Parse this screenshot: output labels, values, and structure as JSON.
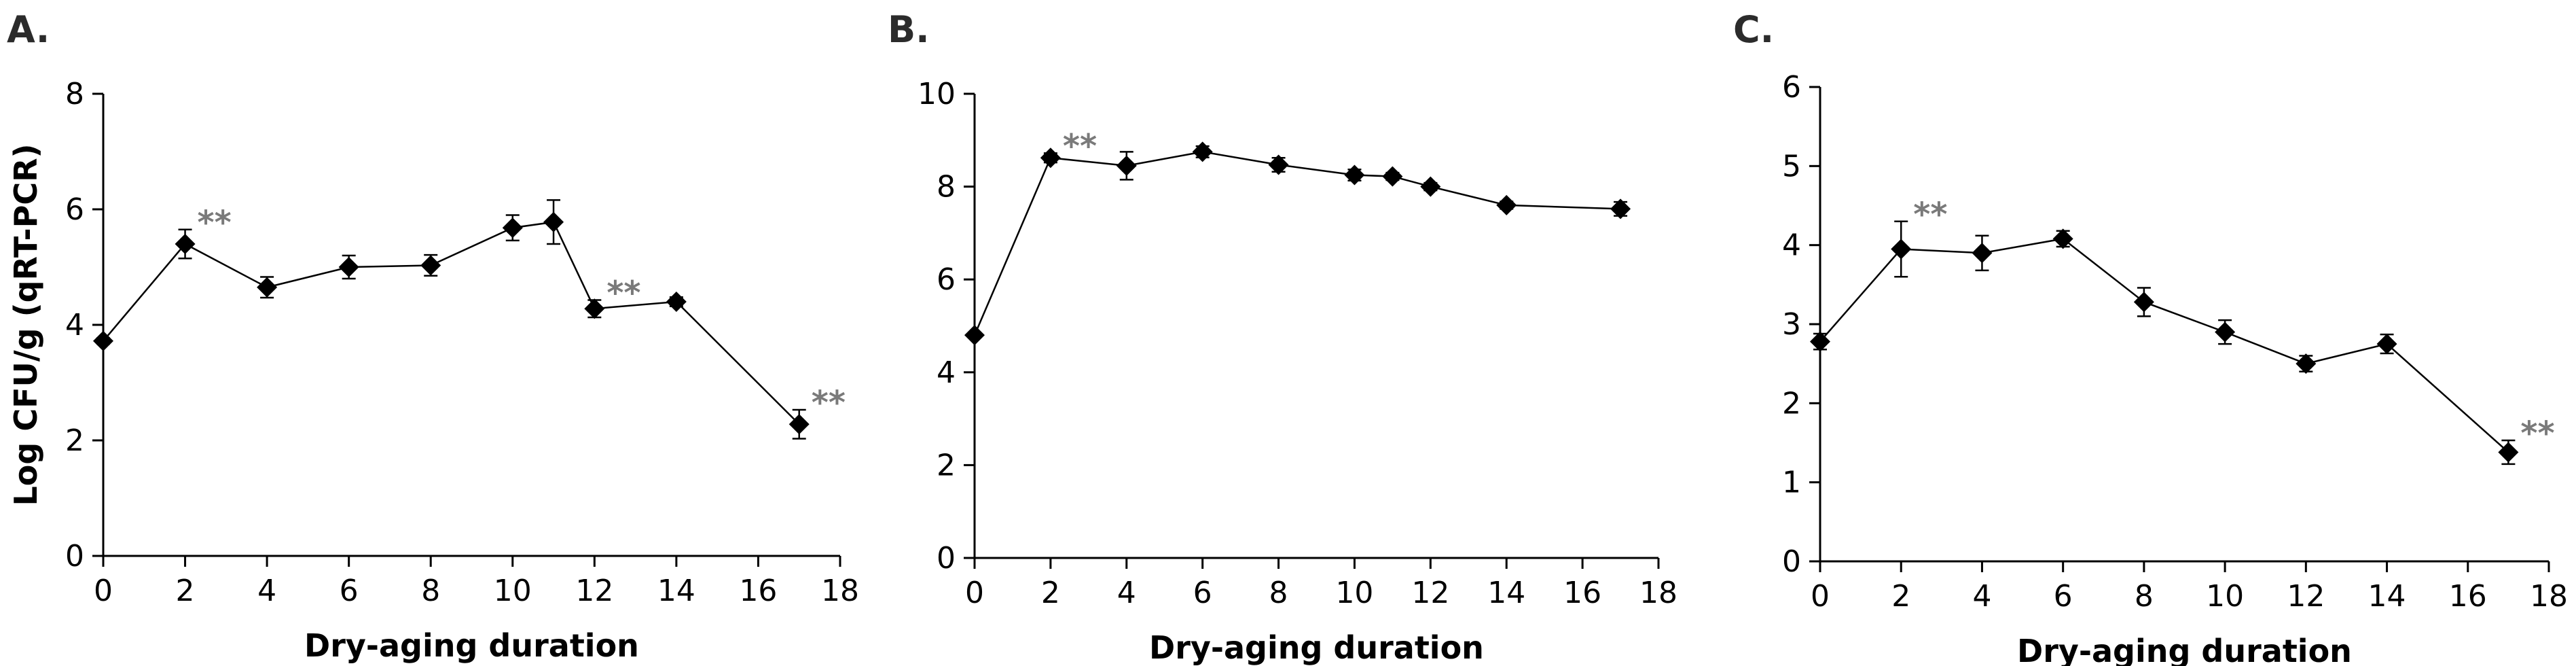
{
  "chart_data": [
    {
      "type": "line",
      "panel_label": "A.",
      "xlabel": "Dry-aging duration",
      "ylabel": "Log CFU/g (qRT-PCR)",
      "x_ticks": [
        0,
        2,
        4,
        6,
        8,
        10,
        12,
        14,
        16,
        18
      ],
      "y_ticks": [
        0,
        2,
        4,
        6,
        8
      ],
      "xlim": [
        0,
        18
      ],
      "ylim": [
        0,
        8
      ],
      "x": [
        0,
        2,
        4,
        6,
        8,
        10,
        11,
        12,
        14,
        17
      ],
      "y": [
        3.72,
        5.4,
        4.65,
        5.0,
        5.03,
        5.68,
        5.78,
        4.28,
        4.4,
        2.28
      ],
      "err": [
        0.05,
        0.25,
        0.18,
        0.2,
        0.18,
        0.22,
        0.38,
        0.15,
        0.08,
        0.25
      ],
      "significance": [
        {
          "x": 2,
          "label": "**"
        },
        {
          "x": 12,
          "label": "**"
        },
        {
          "x": 17,
          "label": "**"
        }
      ]
    },
    {
      "type": "line",
      "panel_label": "B.",
      "xlabel": "Dry-aging duration",
      "ylabel": "",
      "x_ticks": [
        0,
        2,
        4,
        6,
        8,
        10,
        12,
        14,
        16,
        18
      ],
      "y_ticks": [
        0,
        2,
        4,
        6,
        8,
        10
      ],
      "xlim": [
        0,
        18
      ],
      "ylim": [
        0,
        10
      ],
      "x": [
        0,
        2,
        4,
        6,
        8,
        10,
        11,
        12,
        14,
        17
      ],
      "y": [
        4.8,
        8.62,
        8.45,
        8.75,
        8.47,
        8.25,
        8.22,
        8.0,
        7.6,
        7.52
      ],
      "err": [
        0.05,
        0.1,
        0.3,
        0.12,
        0.15,
        0.12,
        0.08,
        0.08,
        0.08,
        0.15
      ],
      "significance": [
        {
          "x": 2,
          "label": "**"
        }
      ]
    },
    {
      "type": "line",
      "panel_label": "C.",
      "xlabel": "Dry-aging duration",
      "ylabel": "",
      "x_ticks": [
        0,
        2,
        4,
        6,
        8,
        10,
        12,
        14,
        16,
        18
      ],
      "y_ticks": [
        0,
        1,
        2,
        3,
        4,
        5,
        6
      ],
      "xlim": [
        0,
        18
      ],
      "ylim": [
        0,
        6
      ],
      "x": [
        0,
        2,
        4,
        6,
        8,
        10,
        12,
        14,
        17
      ],
      "y": [
        2.78,
        3.95,
        3.9,
        4.08,
        3.28,
        2.9,
        2.5,
        2.75,
        1.38
      ],
      "err": [
        0.1,
        0.35,
        0.22,
        0.1,
        0.18,
        0.15,
        0.1,
        0.12,
        0.15
      ],
      "significance": [
        {
          "x": 2,
          "label": "**"
        },
        {
          "x": 17,
          "label": "**"
        }
      ]
    }
  ]
}
